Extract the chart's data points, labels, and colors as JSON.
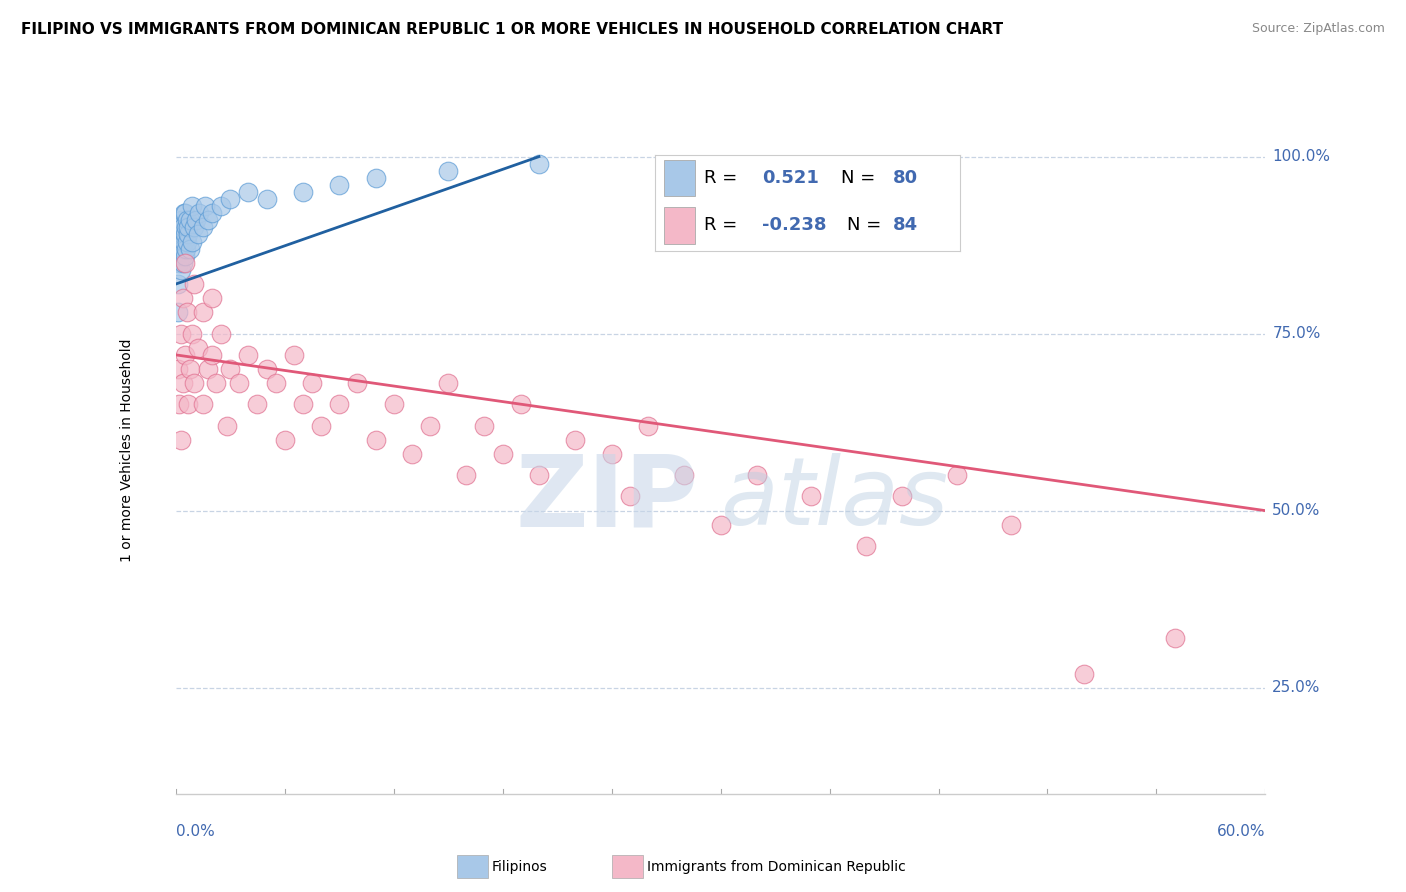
{
  "title": "FILIPINO VS IMMIGRANTS FROM DOMINICAN REPUBLIC 1 OR MORE VEHICLES IN HOUSEHOLD CORRELATION CHART",
  "source": "Source: ZipAtlas.com",
  "ylabel": "1 or more Vehicles in Household",
  "xmin": 0.0,
  "xmax": 60.0,
  "ymin": 10.0,
  "ymax": 107.0,
  "ytick_vals": [
    25.0,
    50.0,
    75.0,
    100.0
  ],
  "blue_color": "#a8c8e8",
  "blue_edge_color": "#5b9bd5",
  "pink_color": "#f4b8c8",
  "pink_edge_color": "#e07090",
  "blue_line_color": "#2060a0",
  "pink_line_color": "#e05878",
  "watermark_zip": "ZIP",
  "watermark_atlas": "atlas",
  "watermark_color": "#d0dff0",
  "background_color": "#ffffff",
  "grid_color": "#c8d4e4",
  "blue_scatter_x": [
    0.1,
    0.15,
    0.2,
    0.2,
    0.25,
    0.25,
    0.3,
    0.3,
    0.3,
    0.35,
    0.35,
    0.4,
    0.4,
    0.4,
    0.45,
    0.45,
    0.5,
    0.5,
    0.5,
    0.55,
    0.55,
    0.6,
    0.6,
    0.7,
    0.7,
    0.8,
    0.8,
    0.9,
    0.9,
    1.0,
    1.1,
    1.2,
    1.3,
    1.5,
    1.6,
    1.8,
    2.0,
    2.5,
    3.0,
    4.0,
    5.0,
    7.0,
    9.0,
    11.0,
    15.0,
    20.0
  ],
  "blue_scatter_y": [
    78,
    82,
    85,
    88,
    90,
    87,
    84,
    88,
    91,
    86,
    89,
    85,
    87,
    90,
    88,
    92,
    86,
    89,
    92,
    87,
    90,
    88,
    91,
    89,
    90,
    87,
    91,
    88,
    93,
    90,
    91,
    89,
    92,
    90,
    93,
    91,
    92,
    93,
    94,
    95,
    94,
    95,
    96,
    97,
    98,
    99
  ],
  "pink_scatter_x": [
    0.15,
    0.2,
    0.3,
    0.3,
    0.4,
    0.4,
    0.5,
    0.5,
    0.6,
    0.7,
    0.8,
    0.9,
    1.0,
    1.0,
    1.2,
    1.5,
    1.5,
    1.8,
    2.0,
    2.0,
    2.2,
    2.5,
    2.8,
    3.0,
    3.5,
    4.0,
    4.5,
    5.0,
    5.5,
    6.0,
    6.5,
    7.0,
    7.5,
    8.0,
    9.0,
    10.0,
    11.0,
    12.0,
    13.0,
    14.0,
    15.0,
    16.0,
    17.0,
    18.0,
    19.0,
    20.0,
    22.0,
    24.0,
    25.0,
    26.0,
    28.0,
    30.0,
    32.0,
    35.0,
    38.0,
    40.0,
    43.0,
    46.0,
    50.0,
    55.0
  ],
  "pink_scatter_y": [
    70,
    65,
    60,
    75,
    68,
    80,
    72,
    85,
    78,
    65,
    70,
    75,
    68,
    82,
    73,
    65,
    78,
    70,
    72,
    80,
    68,
    75,
    62,
    70,
    68,
    72,
    65,
    70,
    68,
    60,
    72,
    65,
    68,
    62,
    65,
    68,
    60,
    65,
    58,
    62,
    68,
    55,
    62,
    58,
    65,
    55,
    60,
    58,
    52,
    62,
    55,
    48,
    55,
    52,
    45,
    52,
    55,
    48,
    27,
    32
  ],
  "blue_trend_x": [
    0.0,
    20.0
  ],
  "blue_trend_y": [
    82.0,
    100.0
  ],
  "pink_trend_x": [
    0.0,
    60.0
  ],
  "pink_trend_y": [
    72.0,
    50.0
  ],
  "legend_r1": "0.521",
  "legend_n1": "80",
  "legend_r2": "-0.238",
  "legend_n2": "84",
  "dot_size": 180,
  "title_fontsize": 11,
  "source_fontsize": 9,
  "tick_fontsize": 11,
  "ylabel_fontsize": 10,
  "legend_fontsize": 13
}
